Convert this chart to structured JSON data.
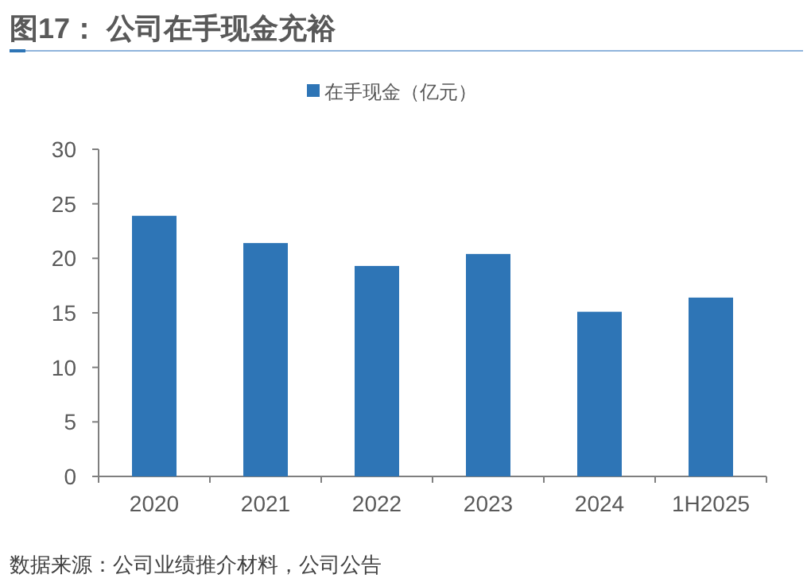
{
  "chart_data": {
    "type": "bar",
    "title": "图17：   公司在手现金充裕",
    "categories": [
      "2020",
      "2021",
      "2022",
      "2023",
      "2024",
      "1H2025"
    ],
    "series": [
      {
        "name": "在手现金（亿元）",
        "color": "#2e75b6",
        "values": [
          23.9,
          21.4,
          19.3,
          20.4,
          15.1,
          16.4
        ]
      }
    ],
    "ylim": [
      0,
      30
    ],
    "yticks": [
      0,
      5,
      10,
      15,
      20,
      25,
      30
    ],
    "grid": false,
    "legend": "top",
    "annotations": [
      "数据来源：公司业绩推介材料，公司公告"
    ]
  }
}
